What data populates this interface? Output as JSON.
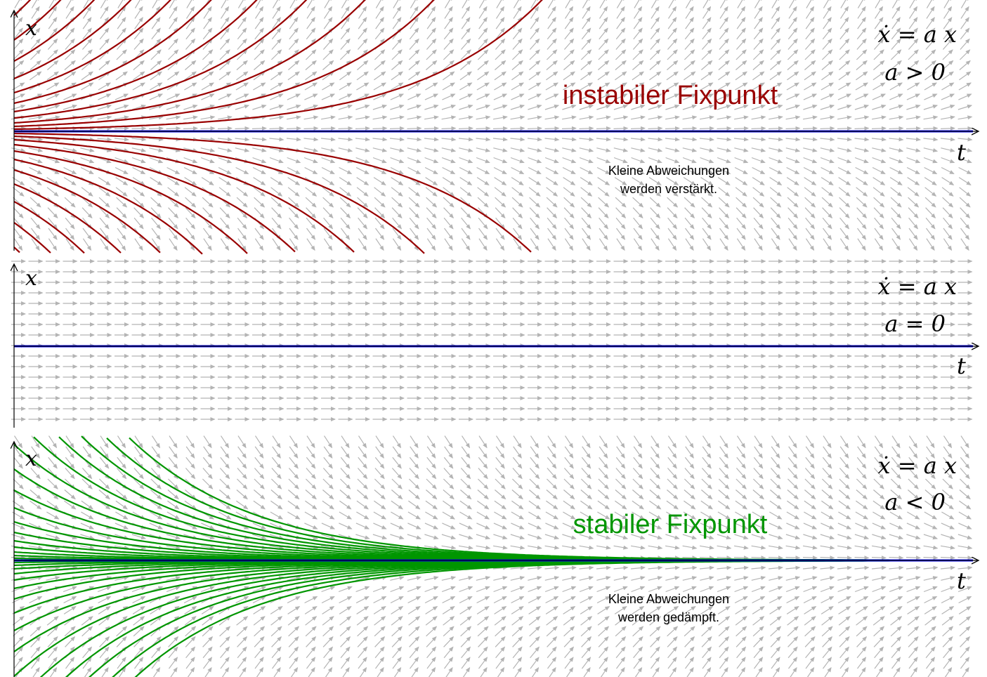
{
  "colors": {
    "field": "#b4b4b4",
    "axis": "#000000",
    "fixpoint": "#0000ee",
    "unstable": "#990000",
    "stable": "#009600"
  },
  "panels": [
    {
      "id": "unstable",
      "x_label": "x",
      "t_label": "t",
      "equation": "ẋ = a x",
      "condition": "a > 0",
      "title": "instabiler Fixpunkt",
      "note_line1": "Kleine Abweichungen",
      "note_line2": "werden verstärkt.",
      "slope": 1
    },
    {
      "id": "neutral",
      "x_label": "x",
      "t_label": "t",
      "equation": "ẋ = a x",
      "condition": "a = 0",
      "title": "",
      "note_line1": "",
      "note_line2": "",
      "slope": 0
    },
    {
      "id": "stable",
      "x_label": "x",
      "t_label": "t",
      "equation": "ẋ = a x",
      "condition": "a < 0",
      "title": "stabiler Fixpunkt",
      "note_line1": "Kleine Abweichungen",
      "note_line2": "werden gedämpft.",
      "slope": -1
    }
  ]
}
